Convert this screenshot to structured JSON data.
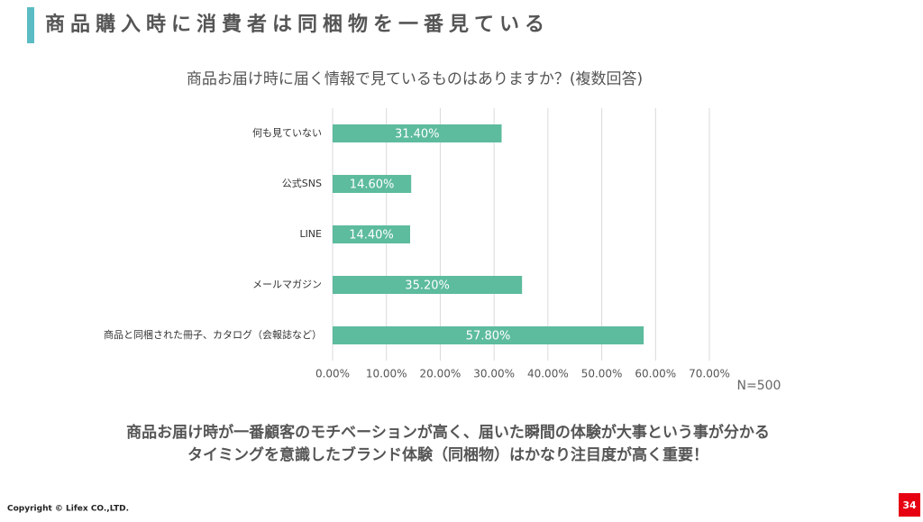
{
  "slide": {
    "heading": "商品購入時に消費者は同梱物を一番見ている",
    "conclusion": [
      "商品お届け時が一番顧客のモチベーションが高く、届いた瞬間の体験が大事という事が分かる",
      "タイミングを意識したブランド体験（同梱物）はかなり注目度が高く重要！"
    ],
    "copyright": "Copyright © Lifex CO.,LTD.",
    "page_number": "34"
  },
  "chart_data": {
    "type": "bar",
    "orientation": "horizontal",
    "title": "商品お届け時に届く情報で見ているものはありますか？(複数回答)",
    "categories": [
      "何も見ていない",
      "公式SNS",
      "LINE",
      "メールマガジン",
      "商品と同梱された冊子、カタログ（会報誌など）"
    ],
    "values": [
      31.4,
      14.6,
      14.4,
      35.2,
      57.8
    ],
    "value_labels": [
      "31.40%",
      "14.60%",
      "14.40%",
      "35.20%",
      "57.80%"
    ],
    "color": "#5dbb9e",
    "xlim": [
      0,
      70
    ],
    "xticks": [
      {
        "value": 0,
        "label": "0.00%"
      },
      {
        "value": 10,
        "label": "10.00%"
      },
      {
        "value": 20,
        "label": "20.00%"
      },
      {
        "value": 30,
        "label": "30.00%"
      },
      {
        "value": 40,
        "label": "40.00%"
      },
      {
        "value": 50,
        "label": "50.00%"
      },
      {
        "value": 60,
        "label": "60.00%"
      },
      {
        "value": 70,
        "label": "70.00%"
      }
    ],
    "grid": true,
    "annotation": "N=500"
  }
}
